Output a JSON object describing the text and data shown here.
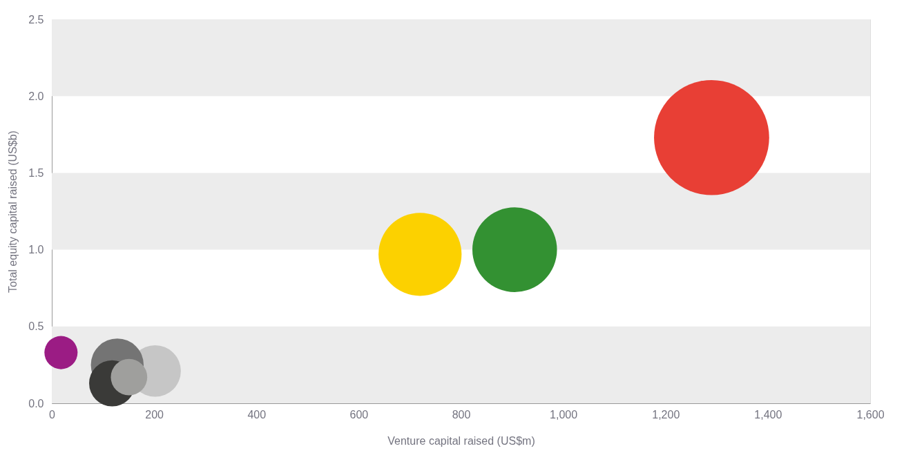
{
  "chart_data": {
    "type": "bubble",
    "xlabel": "Venture capital raised (US$m)",
    "ylabel": "Total equity capital raised (US$b)",
    "x": [
      202,
      128,
      118,
      151,
      18,
      720,
      905,
      1290
    ],
    "values": [
      0.21,
      0.25,
      0.13,
      0.17,
      0.33,
      0.97,
      1.0,
      1.73
    ],
    "sizes": [
      0.2,
      0.21,
      0.16,
      0.1,
      0.083,
      0.52,
      0.54,
      1
    ],
    "colors": [
      "#c6c6c6",
      "#747474",
      "#3a3a38",
      "#9f9f9d",
      "#9b1c84",
      "#fcd100",
      "#339132",
      "#e83f35"
    ],
    "xlim": [
      0,
      1600
    ],
    "xticks": [
      0,
      200,
      400,
      600,
      800,
      {
        "value": 1000,
        "label": "1,000"
      },
      {
        "value": 1200,
        "label": "1,200"
      },
      {
        "value": 1400,
        "label": "1,400"
      },
      {
        "value": 1600,
        "label": "1,600"
      }
    ],
    "ylim": [
      0,
      2.5
    ],
    "yticks": [
      {
        "value": 0,
        "label": "0.0"
      },
      {
        "value": 0.5,
        "label": "0.5"
      },
      {
        "value": 1,
        "label": "1.0"
      },
      {
        "value": 1.5,
        "label": "1.5"
      },
      {
        "value": 2,
        "label": "2.0"
      },
      {
        "value": 2.5,
        "label": "2.5"
      }
    ],
    "bands": [
      {
        "axis": "y",
        "from": 0,
        "to": 0.5,
        "color": "#ececec"
      },
      {
        "axis": "y",
        "from": 1,
        "to": 1.5,
        "color": "#ececec"
      },
      {
        "axis": "y",
        "from": 2,
        "to": 2.5,
        "color": "#ececec"
      }
    ],
    "grid": false
  }
}
